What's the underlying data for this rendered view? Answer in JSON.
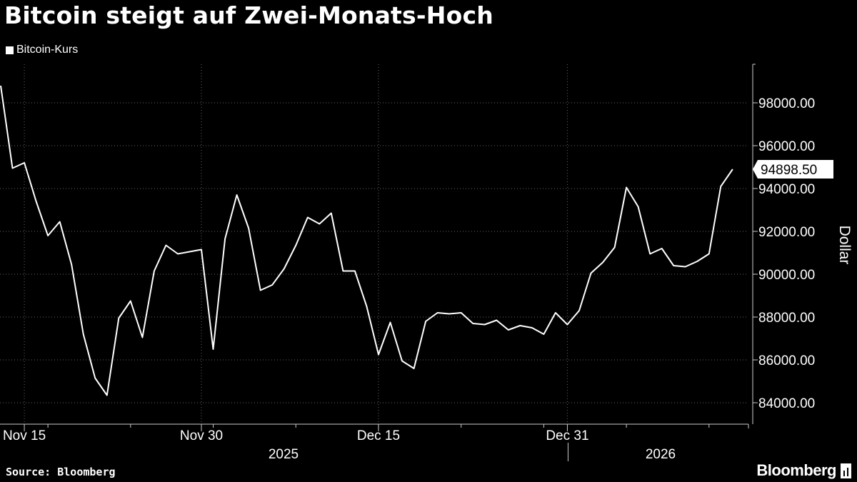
{
  "title": "Bitcoin steigt auf Zwei-Monats-Hoch",
  "footer": {
    "source": "Source: Bloomberg",
    "brand": "Bloomberg"
  },
  "chart_data": {
    "type": "line",
    "title": "Bitcoin steigt auf Zwei-Monats-Hoch",
    "ylabel": "Dollar",
    "xlabel": "",
    "legend": {
      "placement": "top-left",
      "entries": [
        "Bitcoin-Kurs"
      ]
    },
    "grid": true,
    "ylim": [
      83000,
      99800
    ],
    "yticks": [
      84000,
      86000,
      88000,
      90000,
      92000,
      94000,
      96000,
      98000
    ],
    "ytick_labels": [
      "84000.00",
      "86000.00",
      "88000.00",
      "90000.00",
      "92000.00",
      "94000.00",
      "96000.00",
      "98000.00"
    ],
    "xlim": [
      "2025-11-13",
      "2026-01-15"
    ],
    "xticks": [
      {
        "date": "2025-11-15",
        "label": "Nov 15"
      },
      {
        "date": "2025-11-30",
        "label": "Nov 30"
      },
      {
        "date": "2025-12-15",
        "label": "Dec 15"
      },
      {
        "date": "2025-12-31",
        "label": "Dec 31"
      }
    ],
    "year_labels": [
      {
        "label": "2025",
        "from": "2025-11-13",
        "to": "2025-12-31"
      },
      {
        "label": "2026",
        "from": "2026-01-01",
        "to": "2026-01-15"
      }
    ],
    "last_value_label": "94898.50",
    "series": [
      {
        "name": "Bitcoin-Kurs",
        "color": "#ffffff",
        "x": [
          "2025-11-13",
          "2025-11-14",
          "2025-11-15",
          "2025-11-16",
          "2025-11-17",
          "2025-11-18",
          "2025-11-19",
          "2025-11-20",
          "2025-11-21",
          "2025-11-22",
          "2025-11-23",
          "2025-11-24",
          "2025-11-25",
          "2025-11-26",
          "2025-11-27",
          "2025-11-28",
          "2025-11-29",
          "2025-11-30",
          "2025-12-01",
          "2025-12-02",
          "2025-12-03",
          "2025-12-04",
          "2025-12-05",
          "2025-12-06",
          "2025-12-07",
          "2025-12-08",
          "2025-12-09",
          "2025-12-10",
          "2025-12-11",
          "2025-12-12",
          "2025-12-13",
          "2025-12-14",
          "2025-12-15",
          "2025-12-16",
          "2025-12-17",
          "2025-12-18",
          "2025-12-19",
          "2025-12-20",
          "2025-12-21",
          "2025-12-22",
          "2025-12-23",
          "2025-12-24",
          "2025-12-25",
          "2025-12-26",
          "2025-12-27",
          "2025-12-28",
          "2025-12-29",
          "2025-12-30",
          "2025-12-31",
          "2026-01-01",
          "2026-01-02",
          "2026-01-03",
          "2026-01-04",
          "2026-01-05",
          "2026-01-06",
          "2026-01-07",
          "2026-01-08",
          "2026-01-09",
          "2026-01-10",
          "2026-01-11",
          "2026-01-12",
          "2026-01-13",
          "2026-01-14"
        ],
        "values": [
          98800,
          94950,
          95200,
          93400,
          91800,
          92450,
          90450,
          87200,
          85150,
          84350,
          87950,
          88750,
          87050,
          90150,
          91350,
          90950,
          91050,
          91150,
          86500,
          91650,
          93700,
          92150,
          89250,
          89500,
          90250,
          91350,
          92650,
          92350,
          92850,
          90150,
          90150,
          88500,
          86250,
          87750,
          85950,
          85600,
          87800,
          88200,
          88150,
          88200,
          87700,
          87650,
          87850,
          87400,
          87600,
          87500,
          87200,
          88200,
          87650,
          88300,
          90050,
          90550,
          91250,
          94050,
          93150,
          90950,
          91200,
          90400,
          90350,
          90600,
          90950,
          94100,
          94898.5
        ]
      }
    ]
  }
}
